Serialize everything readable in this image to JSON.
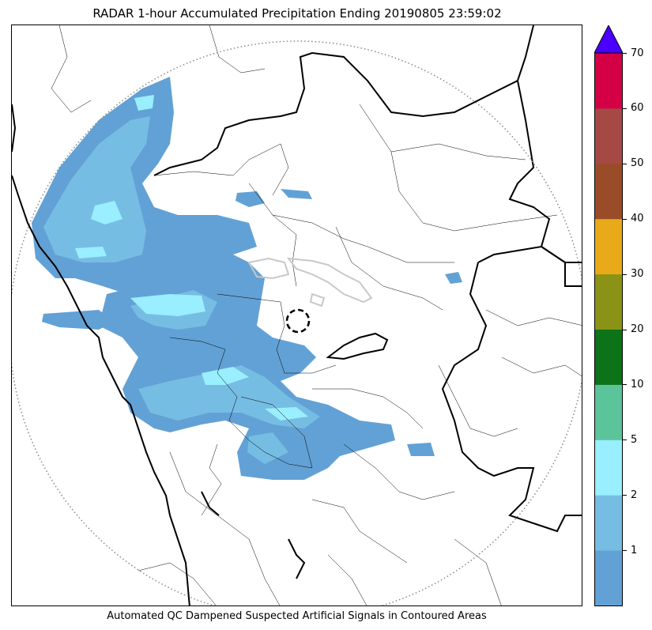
{
  "title": "RADAR 1-hour Accumulated Precipitation Ending 20190805 23:59:02",
  "footer": "Automated QC Dampened Suspected Artificial Signals in Contoured Areas",
  "colorbar": {
    "extend_max_color": "#4B00FF",
    "bins": [
      {
        "color": "#62A1D5"
      },
      {
        "color": "#76BDE3"
      },
      {
        "color": "#99EEFF"
      },
      {
        "color": "#5BC49B"
      },
      {
        "color": "#0C7318"
      },
      {
        "color": "#8A9315"
      },
      {
        "color": "#E8AA18"
      },
      {
        "color": "#9A4C28"
      },
      {
        "color": "#A64944"
      },
      {
        "color": "#D40046"
      }
    ],
    "tick_labels": [
      "1",
      "2",
      "5",
      "10",
      "20",
      "30",
      "40",
      "50",
      "60",
      "70"
    ]
  },
  "map": {
    "precip_colors": {
      "light": "#62A1D5",
      "medium": "#76BDE3",
      "heavy": "#99EEFF"
    },
    "boundary_color": "#000000",
    "range_ring_color": "#888888",
    "qc_contour_color": "#C8C8C8"
  }
}
